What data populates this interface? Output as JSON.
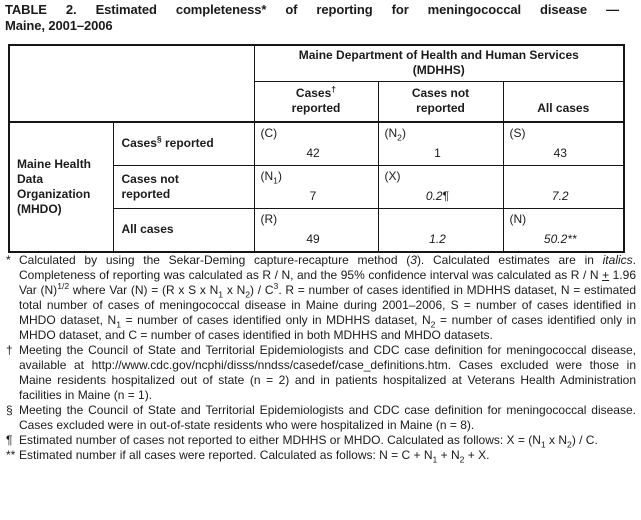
{
  "title": {
    "line1": "TABLE 2. Estimated completeness* of reporting for meningococcal disease —",
    "line2": "Maine, 2001–2006"
  },
  "colors": {
    "text": "#1b1b1d",
    "border": "#161616",
    "background": "#ffffff"
  },
  "chart_data": {
    "type": "table",
    "title": "TABLE 2. Estimated completeness* of reporting for meningococcal disease — Maine, 2001–2006",
    "column_group": "Maine Department of Health and Human Services (MDHHS)",
    "columns": [
      "Cases reported",
      "Cases not reported",
      "All cases"
    ],
    "row_group": "Maine Health Data Organization (MHDO)",
    "rows": [
      "Cases reported",
      "Cases not reported",
      "All cases"
    ],
    "cells": [
      [
        {
          "symbol": "C",
          "value": 42
        },
        {
          "symbol": "N2",
          "value": 1
        },
        {
          "symbol": "S",
          "value": 43
        }
      ],
      [
        {
          "symbol": "N1",
          "value": 7
        },
        {
          "symbol": "X",
          "value": 0.2
        },
        {
          "symbol": "",
          "value": 7.2
        }
      ],
      [
        {
          "symbol": "R",
          "value": 49
        },
        {
          "symbol": "",
          "value": 1.2
        },
        {
          "symbol": "N",
          "value": 50.2
        }
      ]
    ]
  },
  "table": {
    "spanner": "Maine Department of Health and Human Services\n(MDHHS)",
    "col_headers": [
      [
        {
          "t": "Cases"
        },
        {
          "t": "†",
          "sup": true
        },
        {
          "t": "\nreported"
        }
      ],
      [
        {
          "t": "Cases not\nreported"
        }
      ],
      [
        {
          "t": "All cases"
        }
      ]
    ],
    "stub": "Maine Health\nData\nOrganization\n(MHDO)",
    "rows": [
      {
        "label": [
          {
            "t": "Cases"
          },
          {
            "t": "§",
            "sup": true
          },
          {
            "t": " reported"
          }
        ],
        "cells": [
          {
            "tag": [
              {
                "t": "(C)"
              }
            ],
            "val": [
              {
                "t": "42"
              }
            ]
          },
          {
            "tag": [
              {
                "t": "(N"
              },
              {
                "t": "2",
                "sub": true
              },
              {
                "t": ")"
              }
            ],
            "val": [
              {
                "t": "1"
              }
            ]
          },
          {
            "tag": [
              {
                "t": "(S)"
              }
            ],
            "val": [
              {
                "t": "43"
              }
            ]
          }
        ]
      },
      {
        "label": [
          {
            "t": "Cases not\nreported"
          }
        ],
        "cells": [
          {
            "tag": [
              {
                "t": "(N"
              },
              {
                "t": "1",
                "sub": true
              },
              {
                "t": ")"
              }
            ],
            "val": [
              {
                "t": "7"
              }
            ]
          },
          {
            "tag": [
              {
                "t": "(X)"
              }
            ],
            "val": [
              {
                "t": "0.2",
                "i": true
              },
              {
                "t": "¶"
              }
            ]
          },
          {
            "tag": [],
            "val": [
              {
                "t": "7.2",
                "i": true
              }
            ]
          }
        ]
      },
      {
        "label": [
          {
            "t": "All cases"
          }
        ],
        "cells": [
          {
            "tag": [
              {
                "t": "(R)"
              }
            ],
            "val": [
              {
                "t": "49"
              }
            ]
          },
          {
            "tag": [],
            "val": [
              {
                "t": "1.2",
                "i": true
              }
            ]
          },
          {
            "tag": [
              {
                "t": "(N)"
              }
            ],
            "val": [
              {
                "t": "50.2**",
                "i": true
              }
            ]
          }
        ]
      }
    ]
  },
  "footnotes": [
    {
      "marker": "*",
      "text": [
        {
          "t": "Calculated by using the Sekar-Deming capture-recapture method ("
        },
        {
          "t": "3",
          "i": true
        },
        {
          "t": "). Calculated estimates are in "
        },
        {
          "t": "italics",
          "i": true
        },
        {
          "t": ". Completeness of reporting was calculated as R / N, and the 95% confidence interval was calculated as R / N "
        },
        {
          "t": "+",
          "u": true
        },
        {
          "t": " 1.96 Var (N)"
        },
        {
          "t": "1/2",
          "sup": true
        },
        {
          "t": " where Var (N) = (R x S x N"
        },
        {
          "t": "1",
          "sub": true
        },
        {
          "t": " x N"
        },
        {
          "t": "2",
          "sub": true
        },
        {
          "t": ") / C"
        },
        {
          "t": "3",
          "sup": true
        },
        {
          "t": ". R = number of cases identified in MDHHS dataset, N = estimated total number of cases of meningococcal disease in Maine during 2001–2006, S = number of cases identified in MHDO dataset, N"
        },
        {
          "t": "1",
          "sub": true
        },
        {
          "t": " = number of cases identified only in MDHHS dataset, N"
        },
        {
          "t": "2",
          "sub": true
        },
        {
          "t": " = number of cases identified only in MHDO dataset, and C = number of cases identified in both MDHHS and MHDO datasets."
        }
      ]
    },
    {
      "marker": "†",
      "text": [
        {
          "t": "Meeting the Council of State and Territorial Epidemiologists and CDC case definition for meningococcal disease, available at http://www.cdc.gov/ncphi/disss/nndss/casedef/case_definitions.htm. Cases excluded were those in Maine residents hospitalized out of state (n = 2) and in patients hospitalized at Veterans Health Administration facilities in Maine (n = 1)."
        }
      ]
    },
    {
      "marker": "§",
      "text": [
        {
          "t": "Meeting the Council of State and Territorial Epidemiologists and CDC case definition for meningococcal disease. Cases excluded were in out-of-state residents who were hospitalized in Maine (n = 8)."
        }
      ]
    },
    {
      "marker": "¶",
      "text": [
        {
          "t": "Estimated number of cases not reported to either MDHHS or MHDO. Calculated as follows: X = (N"
        },
        {
          "t": "1",
          "sub": true
        },
        {
          "t": " x N"
        },
        {
          "t": "2",
          "sub": true
        },
        {
          "t": ") / C."
        }
      ]
    },
    {
      "marker": "**",
      "text": [
        {
          "t": "Estimated number if all cases were reported. Calculated as follows: N = C + N"
        },
        {
          "t": "1",
          "sub": true
        },
        {
          "t": " + N"
        },
        {
          "t": "2",
          "sub": true
        },
        {
          "t": " + X."
        }
      ]
    }
  ]
}
